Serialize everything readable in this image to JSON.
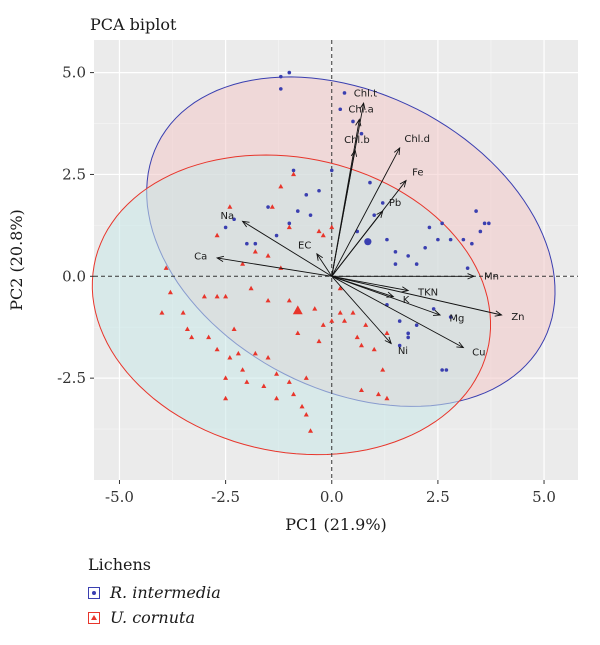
{
  "chart_data": {
    "type": "scatter",
    "title": "PCA biplot",
    "xlabel": "PC1 (21.9%)",
    "ylabel": "PC2 (20.8%)",
    "xlim": [
      -5.6,
      5.8
    ],
    "ylim": [
      -5.0,
      5.8
    ],
    "xticks": [
      -5.0,
      -2.5,
      0.0,
      2.5,
      5.0
    ],
    "yticks": [
      -2.5,
      0.0,
      2.5,
      5.0
    ],
    "xtick_labels": [
      "-5.0",
      "-2.5",
      "0.0",
      "2.5",
      "5.0"
    ],
    "ytick_labels": [
      "-2.5",
      "0.0",
      "2.5",
      "5.0"
    ],
    "grid": true,
    "background": "#ebebeb",
    "legend": {
      "title": "Lichens",
      "position": "bottom-left",
      "entries": [
        "R. intermedia",
        "U. cornuta"
      ]
    },
    "series": [
      {
        "name": "R. intermedia",
        "color": "#3a3fb0",
        "fill": "#f2c9c9",
        "marker": "circle",
        "centroid": [
          0.85,
          0.85
        ],
        "ellipse": {
          "cx": 0.45,
          "cy": 0.85,
          "rx": 5.15,
          "ry": 3.6,
          "angle": -30
        },
        "points": [
          [
            -1.2,
            4.9
          ],
          [
            -1.0,
            5.0
          ],
          [
            -1.2,
            4.6
          ],
          [
            0.2,
            4.1
          ],
          [
            0.3,
            4.5
          ],
          [
            0.5,
            3.8
          ],
          [
            0.7,
            3.5
          ],
          [
            -2.3,
            1.4
          ],
          [
            -2.5,
            1.2
          ],
          [
            -2.0,
            0.8
          ],
          [
            -1.5,
            1.7
          ],
          [
            -1.3,
            1.0
          ],
          [
            -0.9,
            2.6
          ],
          [
            -0.6,
            2.0
          ],
          [
            -0.5,
            1.5
          ],
          [
            -1.0,
            1.3
          ],
          [
            -0.3,
            2.1
          ],
          [
            0.0,
            2.6
          ],
          [
            0.9,
            2.3
          ],
          [
            1.2,
            1.8
          ],
          [
            1.0,
            1.5
          ],
          [
            0.6,
            1.1
          ],
          [
            1.3,
            0.9
          ],
          [
            1.5,
            0.6
          ],
          [
            1.5,
            0.3
          ],
          [
            1.8,
            0.5
          ],
          [
            2.0,
            0.3
          ],
          [
            2.2,
            0.7
          ],
          [
            2.3,
            1.2
          ],
          [
            2.5,
            0.9
          ],
          [
            2.6,
            1.3
          ],
          [
            2.8,
            0.9
          ],
          [
            3.1,
            0.9
          ],
          [
            3.3,
            0.8
          ],
          [
            3.5,
            1.1
          ],
          [
            3.6,
            1.3
          ],
          [
            3.4,
            1.6
          ],
          [
            3.7,
            1.3
          ],
          [
            3.2,
            0.2
          ],
          [
            2.4,
            -0.8
          ],
          [
            2.8,
            -1.0
          ],
          [
            1.8,
            -1.4
          ],
          [
            1.8,
            -1.5
          ],
          [
            1.6,
            -1.1
          ],
          [
            1.3,
            -0.7
          ],
          [
            2.0,
            -1.2
          ],
          [
            1.6,
            -1.7
          ],
          [
            2.6,
            -2.3
          ],
          [
            2.7,
            -2.3
          ],
          [
            -1.8,
            0.8
          ],
          [
            -0.8,
            1.6
          ]
        ]
      },
      {
        "name": "U. cornuta",
        "color": "#e8352b",
        "fill": "#c9e7e7",
        "marker": "triangle",
        "centroid": [
          -0.8,
          -0.85
        ],
        "ellipse": {
          "cx": -0.95,
          "cy": -0.7,
          "rx": 4.75,
          "ry": 3.6,
          "angle": -14
        },
        "points": [
          [
            -3.9,
            0.2
          ],
          [
            -4.0,
            -0.9
          ],
          [
            -3.8,
            -0.4
          ],
          [
            -3.5,
            -0.9
          ],
          [
            -3.4,
            -1.3
          ],
          [
            -3.3,
            -1.5
          ],
          [
            -3.0,
            -0.5
          ],
          [
            -2.9,
            -1.5
          ],
          [
            -2.7,
            -1.8
          ],
          [
            -2.3,
            -1.3
          ],
          [
            -2.2,
            -1.9
          ],
          [
            -2.1,
            -2.3
          ],
          [
            -2.4,
            -2.0
          ],
          [
            -2.5,
            -2.5
          ],
          [
            -2.5,
            -3.0
          ],
          [
            -2.0,
            -2.6
          ],
          [
            -1.8,
            -1.9
          ],
          [
            -1.6,
            -2.7
          ],
          [
            -1.5,
            -2.0
          ],
          [
            -1.3,
            -2.4
          ],
          [
            -1.3,
            -3.0
          ],
          [
            -1.0,
            -2.6
          ],
          [
            -0.9,
            -2.9
          ],
          [
            -0.7,
            -3.2
          ],
          [
            -0.6,
            -2.5
          ],
          [
            -0.6,
            -3.4
          ],
          [
            -0.5,
            -3.8
          ],
          [
            -1.9,
            -0.3
          ],
          [
            -2.7,
            -0.5
          ],
          [
            -2.5,
            -0.5
          ],
          [
            -2.1,
            0.3
          ],
          [
            -1.8,
            0.6
          ],
          [
            -1.5,
            0.5
          ],
          [
            -1.2,
            0.2
          ],
          [
            -1.5,
            -0.6
          ],
          [
            -1.0,
            -0.6
          ],
          [
            -0.8,
            -1.4
          ],
          [
            -0.4,
            -0.8
          ],
          [
            -0.3,
            -1.6
          ],
          [
            -0.2,
            -1.2
          ],
          [
            0.0,
            -1.1
          ],
          [
            0.2,
            -0.9
          ],
          [
            0.3,
            -1.1
          ],
          [
            0.5,
            -0.9
          ],
          [
            0.6,
            -1.5
          ],
          [
            0.8,
            -1.2
          ],
          [
            0.7,
            -1.7
          ],
          [
            1.0,
            -1.8
          ],
          [
            1.3,
            -1.4
          ],
          [
            1.2,
            -2.3
          ],
          [
            0.7,
            -2.8
          ],
          [
            1.1,
            -2.9
          ],
          [
            1.3,
            -3.0
          ],
          [
            -1.4,
            1.7
          ],
          [
            -1.0,
            1.2
          ],
          [
            -0.9,
            2.5
          ],
          [
            -1.2,
            2.2
          ],
          [
            -0.3,
            1.1
          ],
          [
            -0.2,
            1.0
          ],
          [
            0.0,
            1.2
          ],
          [
            -2.4,
            1.7
          ],
          [
            -2.7,
            1.0
          ],
          [
            0.2,
            -0.3
          ]
        ]
      }
    ],
    "loadings": [
      {
        "label": "Chl.t",
        "x": 0.75,
        "y": 4.25
      },
      {
        "label": "Chl.a",
        "x": 0.65,
        "y": 3.85
      },
      {
        "label": "Chl.b",
        "x": 0.55,
        "y": 3.1
      },
      {
        "label": "Chl.d",
        "x": 1.6,
        "y": 3.15
      },
      {
        "label": "Fe",
        "x": 1.75,
        "y": 2.35
      },
      {
        "label": "Pb",
        "x": 1.2,
        "y": 1.6
      },
      {
        "label": "Na",
        "x": -2.1,
        "y": 1.35
      },
      {
        "label": "EC",
        "x": -0.35,
        "y": 0.55
      },
      {
        "label": "Ca",
        "x": -2.7,
        "y": 0.45
      },
      {
        "label": "Mn",
        "x": 3.35,
        "y": 0.0
      },
      {
        "label": "TKN",
        "x": 1.8,
        "y": -0.35
      },
      {
        "label": "K",
        "x": 1.45,
        "y": -0.5
      },
      {
        "label": "Zn",
        "x": 4.0,
        "y": -0.95
      },
      {
        "label": "Mg",
        "x": 2.55,
        "y": -0.95
      },
      {
        "label": "Cu",
        "x": 3.1,
        "y": -1.75
      },
      {
        "label": "Ni",
        "x": 1.4,
        "y": -1.65
      }
    ]
  }
}
